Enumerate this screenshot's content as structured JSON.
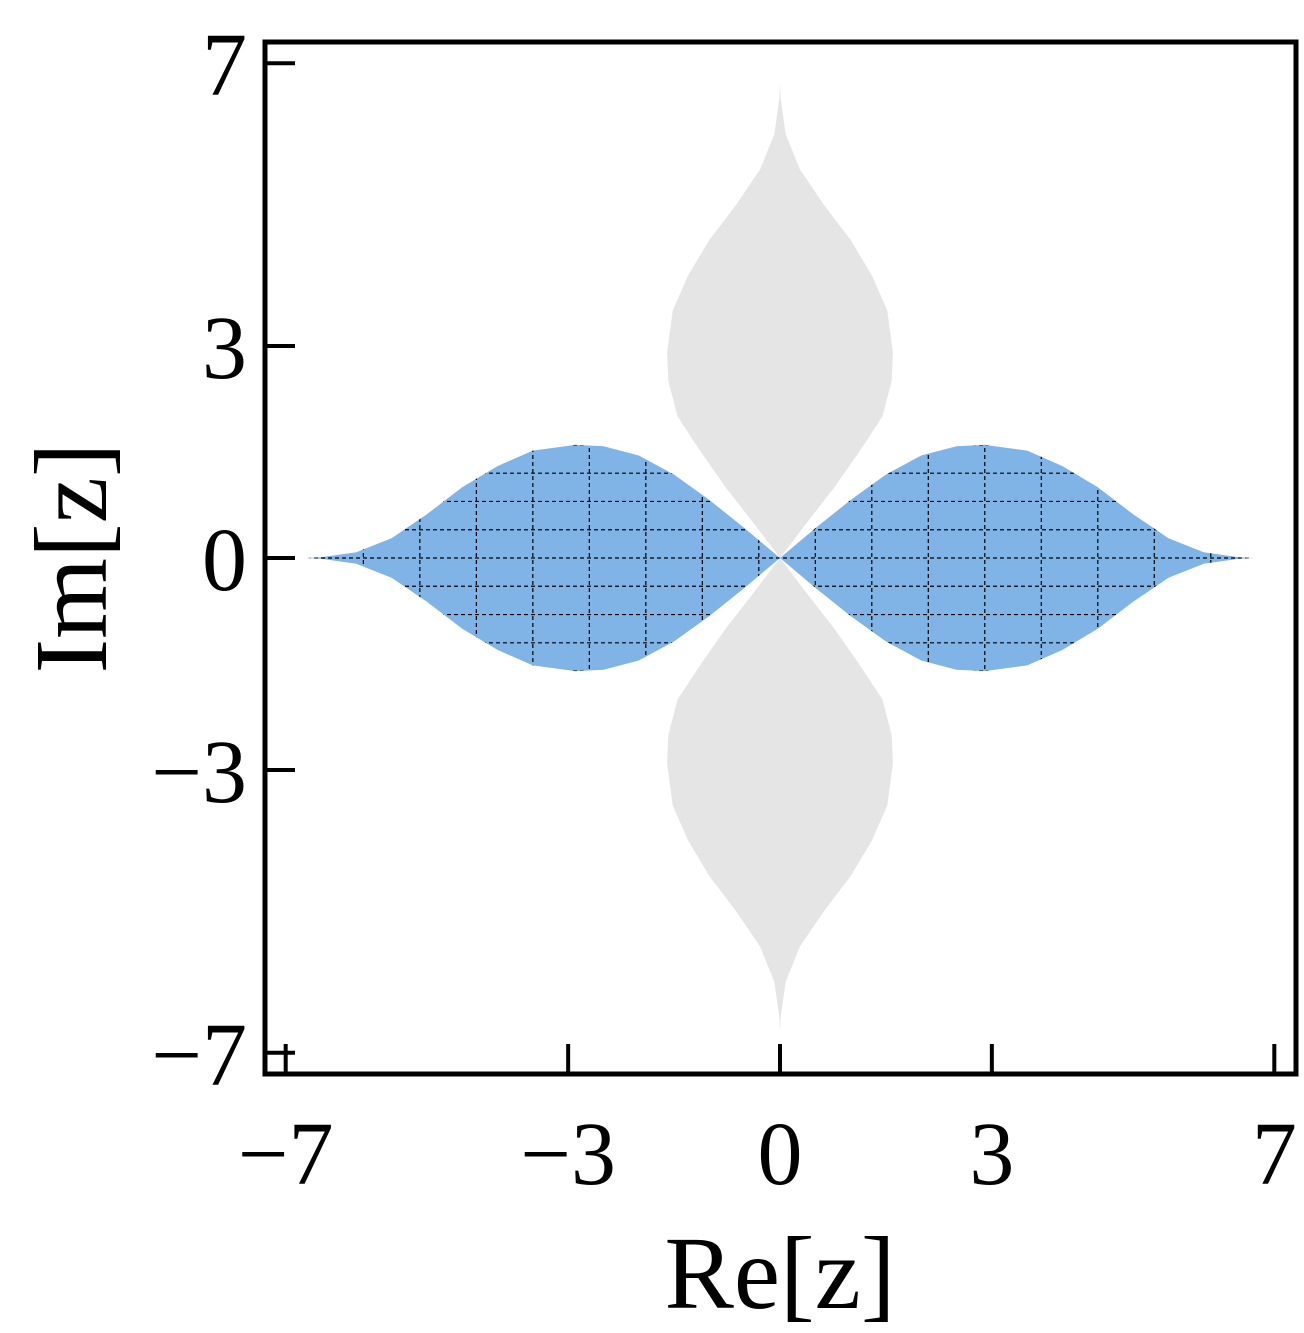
{
  "chart_data": {
    "type": "area",
    "xlabel": "Re[z]",
    "ylabel": "Im[z]",
    "xlim": [
      -7.3,
      7.3
    ],
    "ylim": [
      -7.3,
      7.3
    ],
    "xticks": [
      -7,
      -3,
      0,
      3,
      7
    ],
    "yticks": [
      -7,
      -3,
      0,
      3,
      7
    ],
    "xtick_labels": [
      "−7",
      "−3",
      "0",
      "3",
      "7"
    ],
    "ytick_labels": [
      "−7",
      "−3",
      "0",
      "3",
      "7"
    ],
    "grid": false,
    "colors": {
      "horizontal_region": "#80b3e6",
      "vertical_region": "#e5e5e5",
      "hatch": "#000000",
      "frame": "#000000"
    },
    "regions": [
      {
        "orientation": "horizontal",
        "fill": "blue",
        "hatch": "dashed grid",
        "boundary": {
          "x": [
            0,
            0.5,
            1.0,
            1.5,
            2.0,
            2.5,
            2.9,
            3.5,
            4.0,
            4.5,
            5.0,
            5.5,
            6.0,
            6.5,
            6.7
          ],
          "y": [
            0,
            0.42,
            0.82,
            1.18,
            1.45,
            1.58,
            1.6,
            1.52,
            1.3,
            1.0,
            0.62,
            0.28,
            0.08,
            0.01,
            0
          ]
        }
      },
      {
        "orientation": "vertical",
        "fill": "light gray",
        "hatch": "none",
        "boundary": {
          "x": [
            0,
            0.38,
            0.77,
            1.12,
            1.45,
            1.58,
            1.6,
            1.52,
            1.3,
            1.0,
            0.62,
            0.28,
            0.08,
            0.01,
            0
          ],
          "y": [
            0,
            0.5,
            1.0,
            1.5,
            2.0,
            2.5,
            2.9,
            3.5,
            4.0,
            4.5,
            5.0,
            5.5,
            6.0,
            6.5,
            6.7
          ]
        }
      }
    ]
  }
}
